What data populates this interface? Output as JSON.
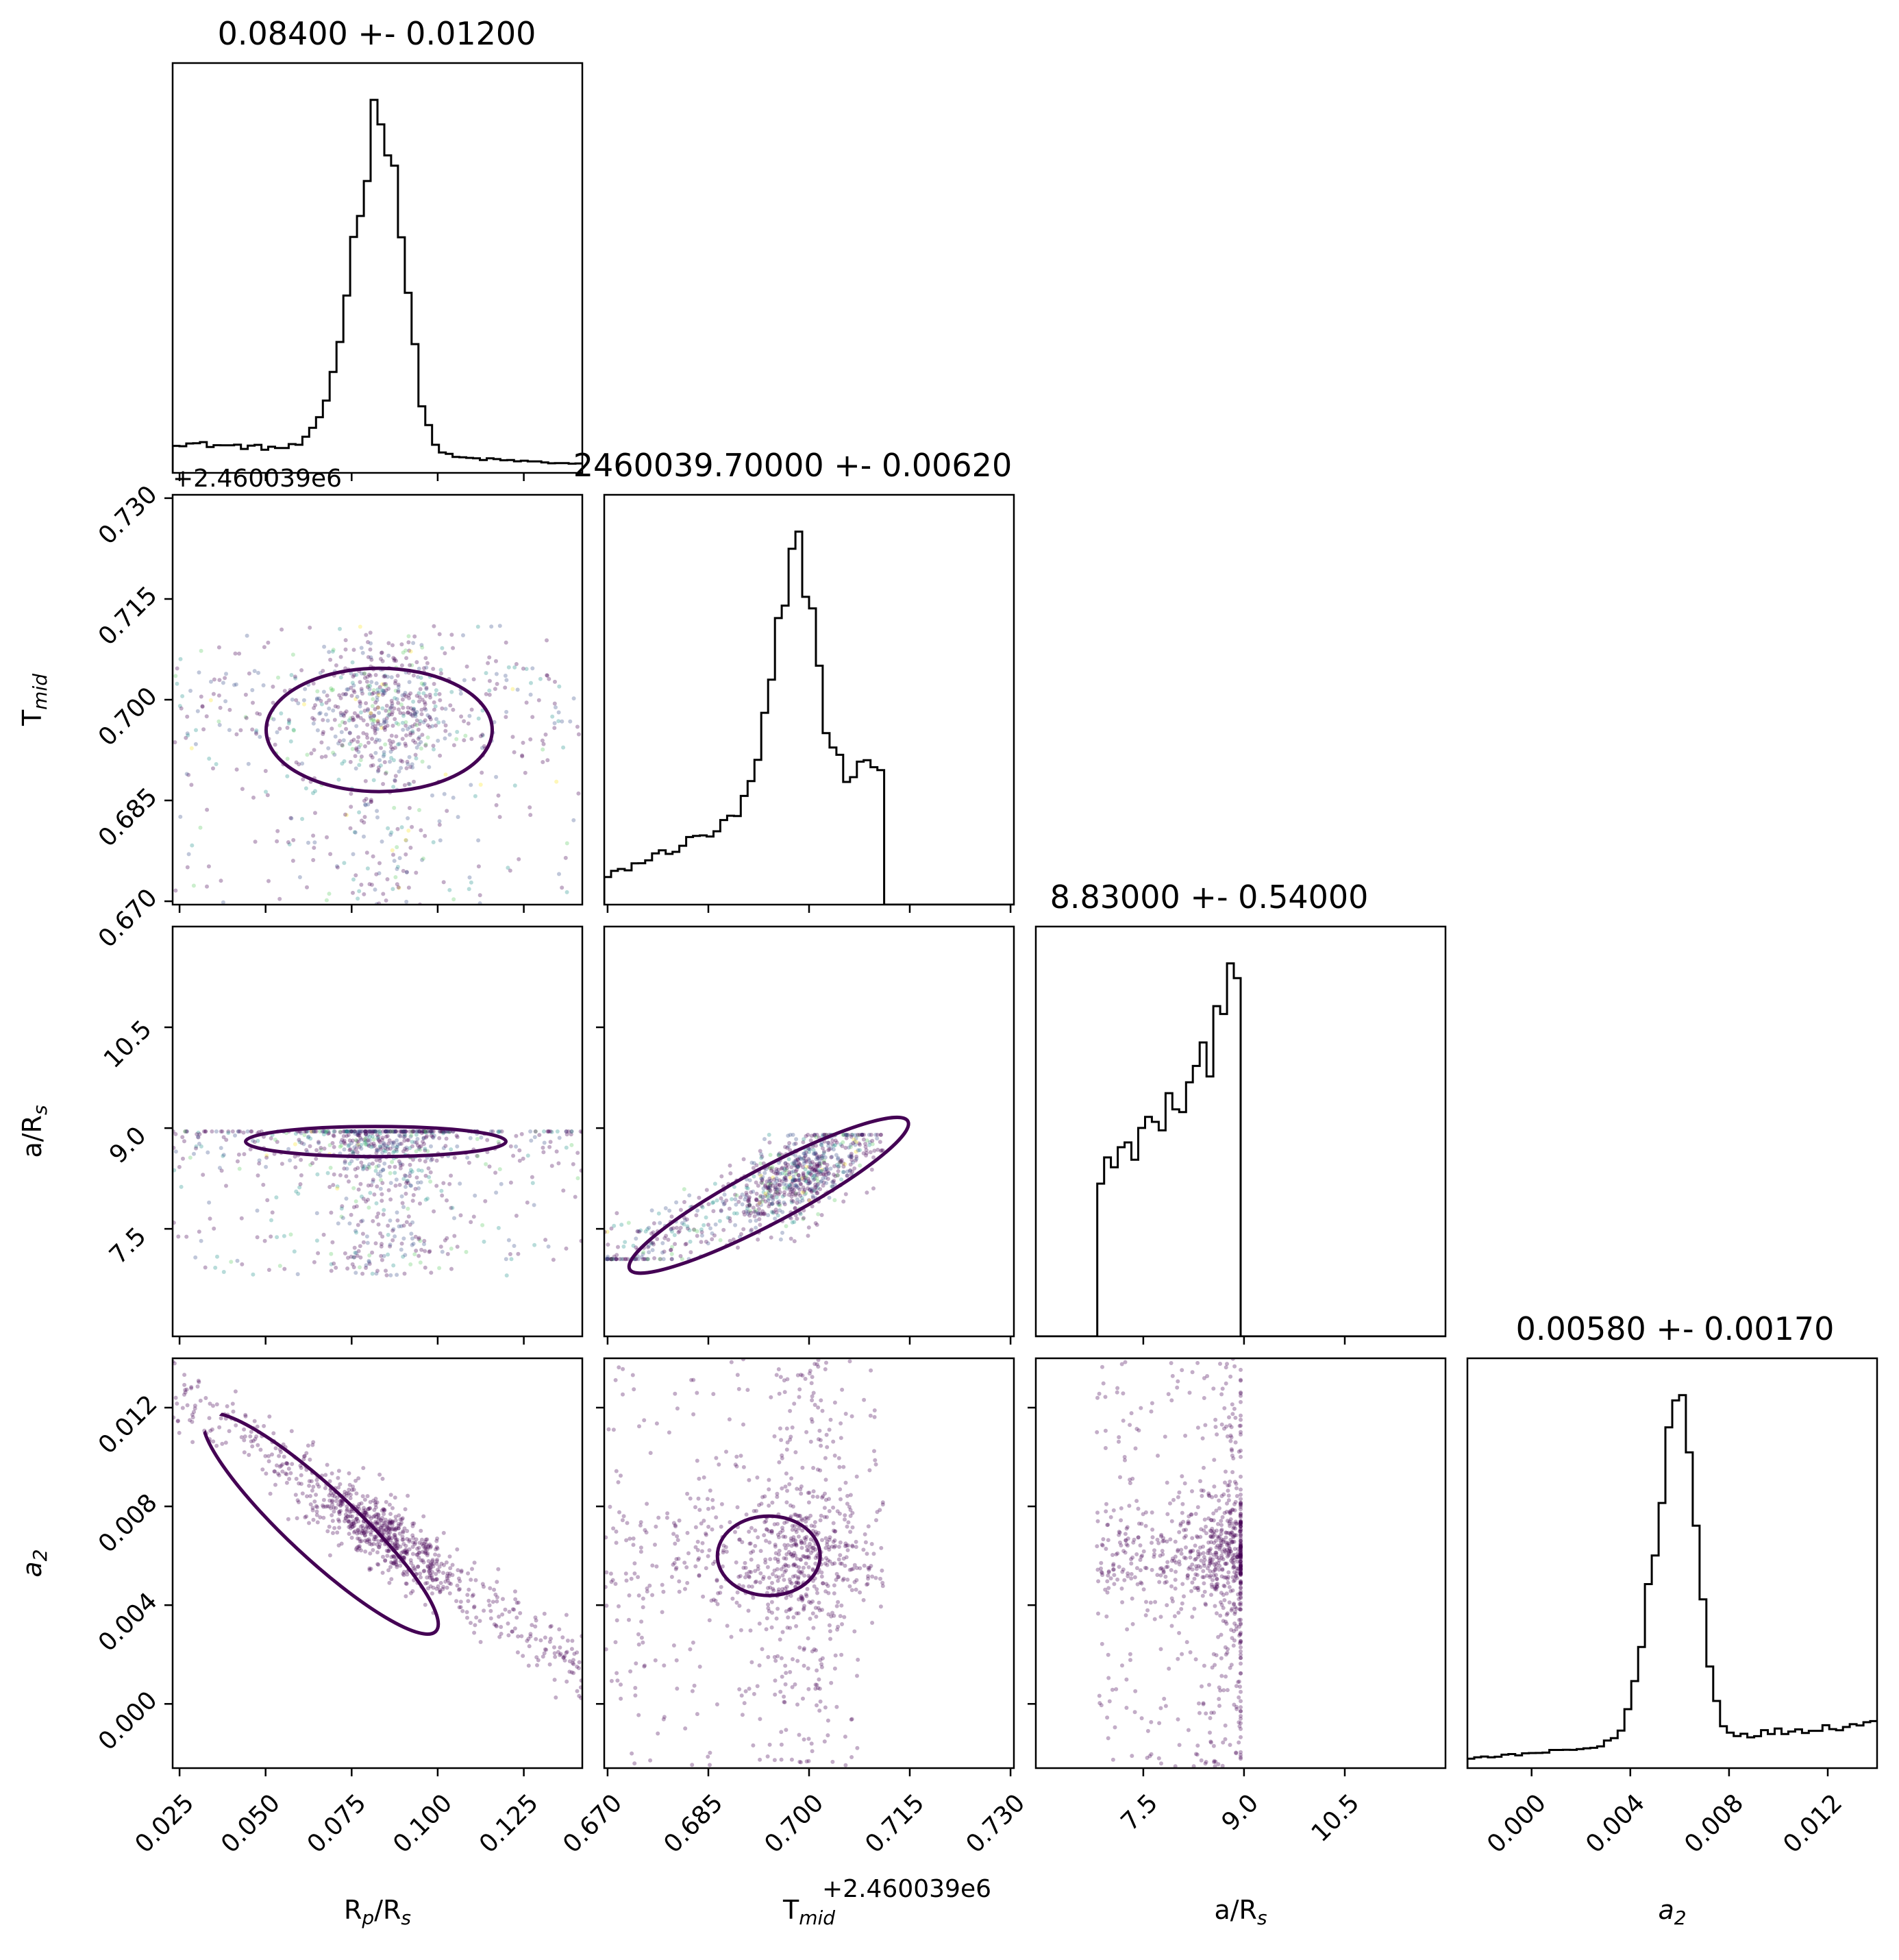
{
  "chart_data": {
    "type": "corner",
    "parameters": [
      {
        "key": "rp",
        "label": "R_p/R_s",
        "label_main": "R",
        "label_sub": "p",
        "label_mid": "/R",
        "label_sub2": "s",
        "range": [
          0.023,
          0.142
        ],
        "ticks": [
          "0.025",
          "0.050",
          "0.075",
          "0.100",
          "0.125"
        ],
        "tick_values": [
          0.025,
          0.05,
          0.075,
          0.1,
          0.125
        ]
      },
      {
        "key": "tmid",
        "label": "T_mid",
        "label_main": "T",
        "label_sub": "mid",
        "label_mid": "",
        "label_sub2": "",
        "range": [
          0.6695,
          0.7305
        ],
        "ticks": [
          "0.670",
          "0.685",
          "0.700",
          "0.715",
          "0.730"
        ],
        "tick_values": [
          0.67,
          0.685,
          0.7,
          0.715,
          0.73
        ],
        "offset": "+2.460039e6"
      },
      {
        "key": "ars",
        "label": "a/R_s",
        "label_main": "a/R",
        "label_sub": "s",
        "label_mid": "",
        "label_sub2": "",
        "range": [
          5.9,
          12.0
        ],
        "ticks": [
          "7.5",
          "9.0",
          "10.5"
        ],
        "tick_values": [
          7.5,
          9.0,
          10.5
        ]
      },
      {
        "key": "a2",
        "label": "a_2",
        "label_main": "a",
        "label_sub": "2",
        "label_mid": "",
        "label_sub2": "",
        "label_italic": true,
        "range": [
          -0.0026,
          0.014
        ],
        "ticks": [
          "0.000",
          "0.004",
          "0.008",
          "0.012"
        ],
        "tick_values": [
          0.0,
          0.004,
          0.008,
          0.012
        ]
      }
    ],
    "titles": [
      "0.08400 +- 0.01200",
      "2460039.70000 +- 0.00620",
      "8.83000 +- 0.54000",
      "0.00580 +- 0.00170"
    ],
    "histograms": [
      {
        "param": "rp",
        "peak": 0.084,
        "width": 0.006,
        "peak_weight": 0.8,
        "floor": [
          0.07,
          0.02
        ],
        "support": [
          0.023,
          0.142
        ]
      },
      {
        "param": "tmid",
        "peak": 0.6985,
        "width": 0.0025,
        "peak_weight": 0.45,
        "floor": [
          0.05,
          0.27
        ],
        "support": [
          0.6695,
          0.711
        ]
      },
      {
        "param": "ars",
        "peak": 8.85,
        "width": 0.15,
        "peak_weight": 0.3,
        "floor": [
          0.45,
          0.85
        ],
        "support": [
          6.8,
          8.95
        ]
      },
      {
        "param": "a2",
        "peak": 0.006,
        "width": 0.0007,
        "peak_weight": 0.75,
        "floor": [
          0.02,
          0.1
        ],
        "support": [
          -0.0026,
          0.014
        ]
      }
    ],
    "scatter_colormap": "viridis",
    "contour_color": "#440154",
    "histogram_color": "#000000"
  }
}
